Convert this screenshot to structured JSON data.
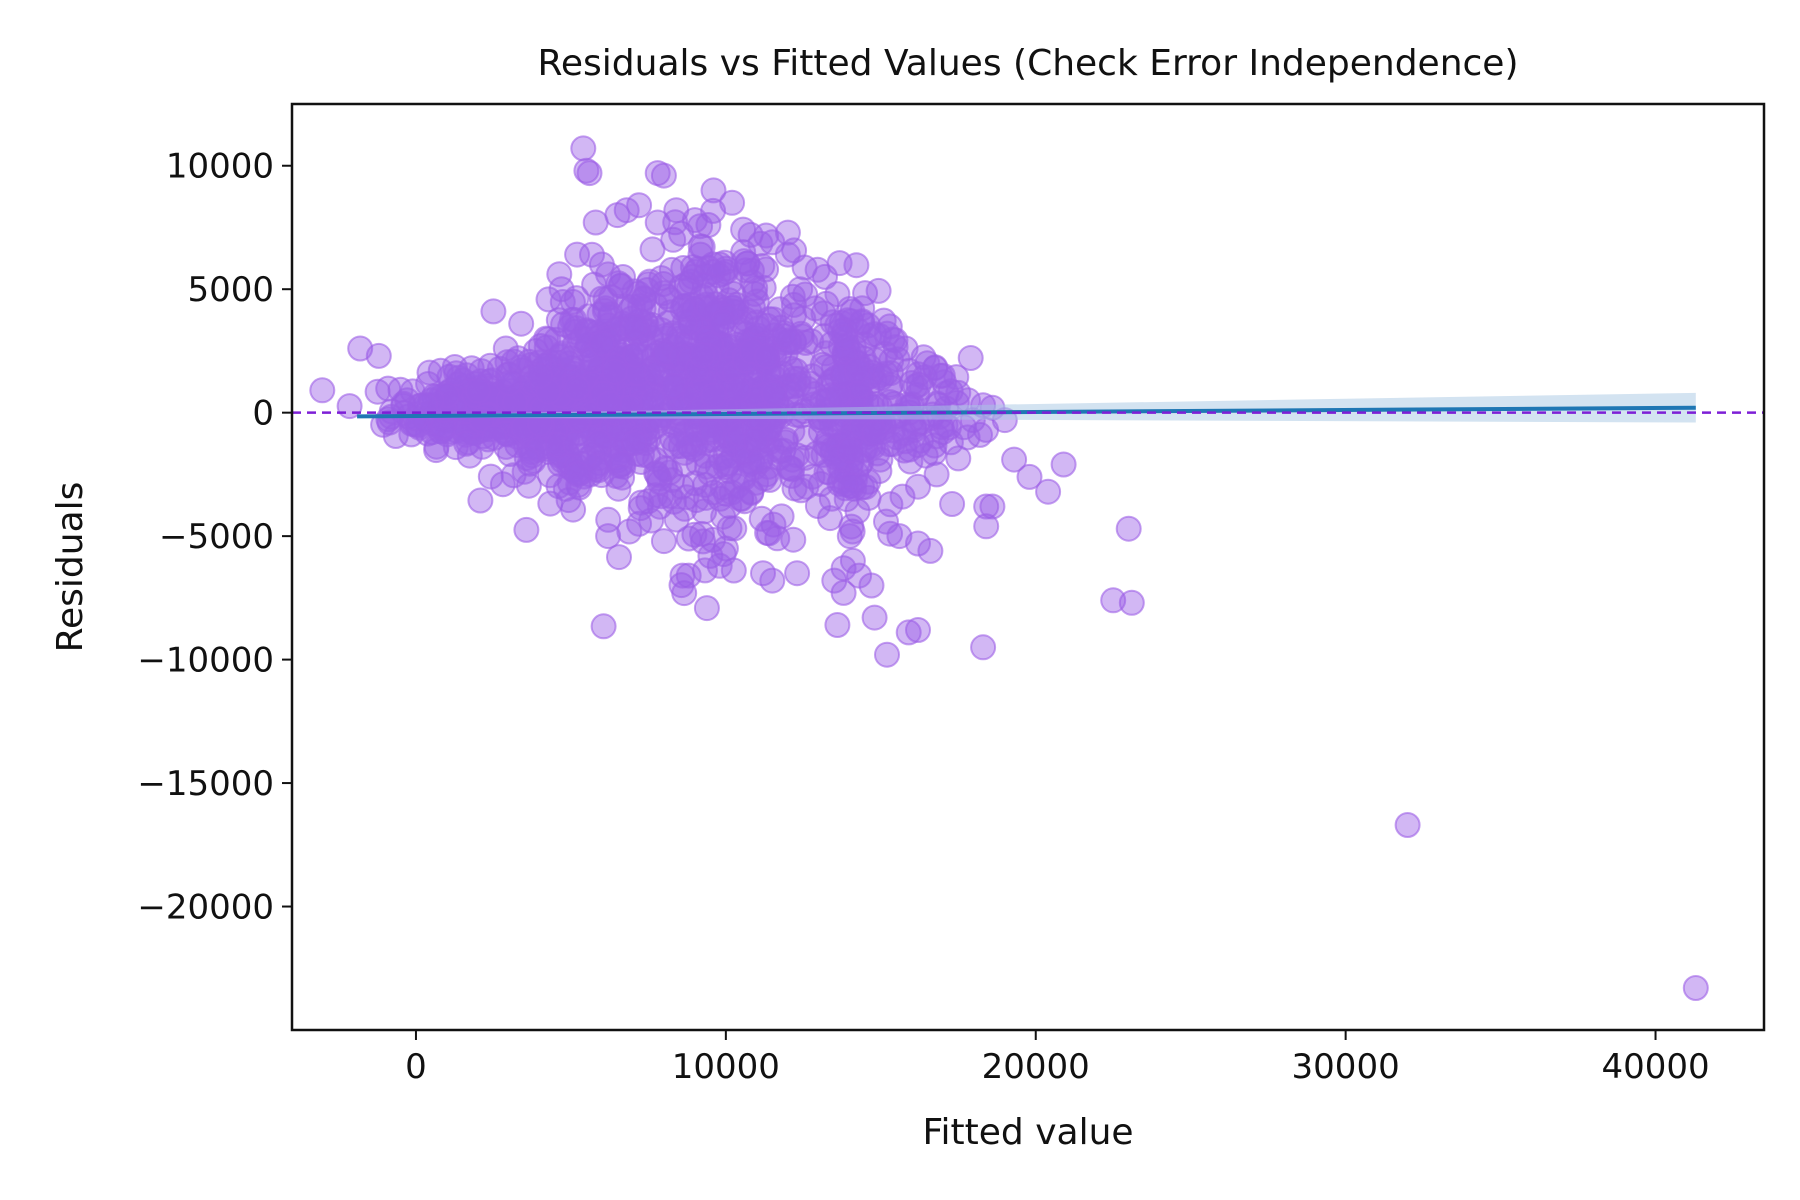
{
  "chart_data": {
    "type": "scatter",
    "title": "Residuals vs Fitted Values (Check Error Independence)",
    "xlabel": "Fitted value",
    "ylabel": "Residuals",
    "xlim": [
      -4000,
      43500
    ],
    "ylim": [
      -25000,
      12500
    ],
    "x_ticks": [
      0,
      10000,
      20000,
      30000,
      40000
    ],
    "x_tick_labels": [
      "0",
      "10000",
      "20000",
      "30000",
      "40000"
    ],
    "y_ticks": [
      10000,
      5000,
      0,
      -5000,
      -10000,
      -15000,
      -20000
    ],
    "y_tick_labels": [
      "10000",
      "5000",
      "0",
      "−5000",
      "−10000",
      "−15000",
      "−20000"
    ],
    "grid": false,
    "colors": {
      "points": "#9c5fe6",
      "zero_line": "#7d1fd6",
      "trend_line": "#1f77b4",
      "confidence_band": "#a8c8e4"
    },
    "reference_line": {
      "y": 0,
      "style": "dashed"
    },
    "trend": {
      "x": [
        -1900,
        41300
      ],
      "y": [
        -150,
        200
      ],
      "band_halfwidth": [
        40,
        600
      ]
    },
    "series": [
      {
        "points": [
          [
            -1800,
            2600
          ],
          [
            -1200,
            2300
          ],
          [
            2500,
            4100
          ],
          [
            4200,
            3000
          ],
          [
            2900,
            2600
          ],
          [
            5400,
            10700
          ],
          [
            5500,
            9800
          ],
          [
            5600,
            9700
          ],
          [
            7800,
            9700
          ],
          [
            8000,
            9600
          ],
          [
            6800,
            8200
          ],
          [
            7200,
            8400
          ],
          [
            8400,
            8200
          ],
          [
            9600,
            9000
          ],
          [
            10200,
            8500
          ],
          [
            5800,
            7700
          ],
          [
            6500,
            8000
          ],
          [
            7800,
            7700
          ],
          [
            8300,
            7000
          ],
          [
            9000,
            7800
          ],
          [
            10800,
            7200
          ],
          [
            11500,
            6900
          ],
          [
            12000,
            6400
          ],
          [
            5200,
            6400
          ],
          [
            6200,
            5600
          ],
          [
            7500,
            5200
          ],
          [
            8800,
            5000
          ],
          [
            11300,
            5800
          ],
          [
            12400,
            5000
          ],
          [
            13200,
            5500
          ],
          [
            13600,
            4800
          ],
          [
            14000,
            4200
          ],
          [
            14400,
            3700
          ],
          [
            15200,
            3200
          ],
          [
            15800,
            2600
          ],
          [
            16500,
            2000
          ],
          [
            17000,
            1500
          ],
          [
            16000,
            1200
          ],
          [
            17500,
            800
          ],
          [
            18300,
            300
          ],
          [
            18600,
            200
          ],
          [
            19000,
            -300
          ],
          [
            17200,
            -600
          ],
          [
            17800,
            -1000
          ],
          [
            18200,
            -900
          ],
          [
            19300,
            -1900
          ],
          [
            19800,
            -2600
          ],
          [
            20400,
            -3200
          ],
          [
            20900,
            -2100
          ],
          [
            16200,
            -3000
          ],
          [
            16800,
            -2500
          ],
          [
            17300,
            -3700
          ],
          [
            15700,
            -3400
          ],
          [
            18400,
            -3800
          ],
          [
            18600,
            -3800
          ],
          [
            18400,
            -4600
          ],
          [
            15300,
            -4900
          ],
          [
            15600,
            -5000
          ],
          [
            16200,
            -5300
          ],
          [
            16600,
            -5600
          ],
          [
            14000,
            -5000
          ],
          [
            14100,
            -6000
          ],
          [
            13800,
            -6300
          ],
          [
            13500,
            -6800
          ],
          [
            14300,
            -6600
          ],
          [
            13800,
            -7300
          ],
          [
            14700,
            -7000
          ],
          [
            12300,
            -6500
          ],
          [
            11500,
            -6800
          ],
          [
            11200,
            -6500
          ],
          [
            10000,
            -5500
          ],
          [
            9500,
            -5800
          ],
          [
            9800,
            -6200
          ],
          [
            8800,
            -6600
          ],
          [
            8600,
            -6600
          ],
          [
            6200,
            -5000
          ],
          [
            7200,
            -4500
          ],
          [
            8000,
            -5200
          ],
          [
            13600,
            -8600
          ],
          [
            14800,
            -8300
          ],
          [
            15900,
            -8900
          ],
          [
            16200,
            -8800
          ],
          [
            15200,
            -9800
          ],
          [
            18300,
            -9500
          ],
          [
            23000,
            -4700
          ],
          [
            22500,
            -7600
          ],
          [
            23100,
            -7700
          ],
          [
            32000,
            -16700
          ],
          [
            41300,
            -23300
          ],
          [
            9300,
            -4000
          ],
          [
            10500,
            -3500
          ],
          [
            11800,
            -4200
          ],
          [
            12600,
            -3000
          ],
          [
            13900,
            -3500
          ],
          [
            14600,
            -2800
          ],
          [
            12500,
            3800
          ],
          [
            11000,
            4500
          ],
          [
            9800,
            6000
          ],
          [
            8600,
            4200
          ],
          [
            7000,
            3500
          ],
          [
            6000,
            2800
          ],
          [
            5000,
            2200
          ],
          [
            4000,
            1500
          ],
          [
            3000,
            1200
          ],
          [
            2000,
            900
          ],
          [
            1000,
            700
          ],
          [
            500,
            500
          ],
          [
            300,
            300
          ],
          [
            800,
            1700
          ],
          [
            1300,
            1600
          ],
          [
            1800,
            1800
          ],
          [
            2400,
            1900
          ],
          [
            3300,
            2200
          ],
          [
            4700,
            5000
          ],
          [
            6000,
            6000
          ]
        ],
        "clusters": [
          {
            "cx": 2200,
            "cy": 100,
            "sx": 1500,
            "sy": 700,
            "n": 260
          },
          {
            "cx": 4800,
            "cy": 0,
            "sx": 1200,
            "sy": 1400,
            "n": 240
          },
          {
            "cx": 6800,
            "cy": 1000,
            "sx": 1300,
            "sy": 2400,
            "n": 340
          },
          {
            "cx": 9800,
            "cy": 1200,
            "sx": 900,
            "sy": 2900,
            "n": 320
          },
          {
            "cx": 11400,
            "cy": 600,
            "sx": 700,
            "sy": 2300,
            "n": 160
          },
          {
            "cx": 14000,
            "cy": 300,
            "sx": 700,
            "sy": 2200,
            "n": 220
          },
          {
            "cx": 16300,
            "cy": -200,
            "sx": 800,
            "sy": 1200,
            "n": 60
          }
        ]
      }
    ]
  }
}
